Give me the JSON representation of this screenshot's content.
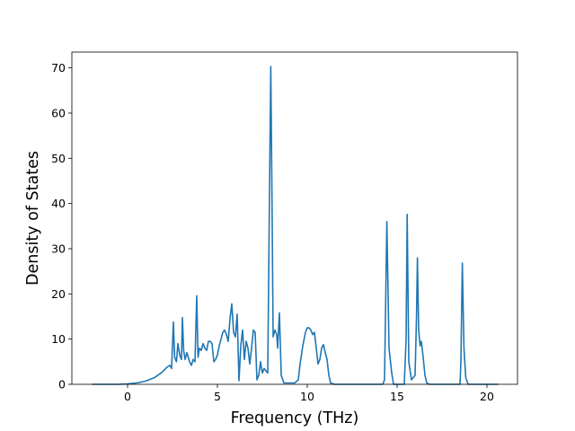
{
  "chart_data": {
    "type": "line",
    "title": "",
    "xlabel": "Frequency (THz)",
    "ylabel": "Density of States",
    "xlim": [
      -3.1,
      21.7
    ],
    "ylim": [
      0,
      73.5
    ],
    "xticks": [
      0,
      5,
      10,
      15,
      20
    ],
    "yticks": [
      0,
      10,
      20,
      30,
      40,
      50,
      60,
      70
    ],
    "grid": false,
    "legend": "none",
    "series": [
      {
        "color": "#1f77b4",
        "points": [
          [
            -1.95,
            0
          ],
          [
            -0.5,
            0
          ],
          [
            0,
            0.1
          ],
          [
            0.5,
            0.3
          ],
          [
            1.0,
            0.7
          ],
          [
            1.5,
            1.5
          ],
          [
            1.9,
            2.6
          ],
          [
            2.2,
            3.8
          ],
          [
            2.35,
            4.2
          ],
          [
            2.45,
            3.5
          ],
          [
            2.55,
            13.8
          ],
          [
            2.62,
            6.0
          ],
          [
            2.72,
            5.0
          ],
          [
            2.8,
            9.0
          ],
          [
            2.9,
            6.5
          ],
          [
            3.0,
            5.5
          ],
          [
            3.05,
            14.8
          ],
          [
            3.12,
            7.5
          ],
          [
            3.2,
            5.5
          ],
          [
            3.3,
            7.0
          ],
          [
            3.45,
            5.0
          ],
          [
            3.55,
            4.2
          ],
          [
            3.65,
            5.5
          ],
          [
            3.75,
            5.0
          ],
          [
            3.85,
            19.6
          ],
          [
            3.92,
            6.0
          ],
          [
            4.0,
            8.0
          ],
          [
            4.1,
            7.5
          ],
          [
            4.2,
            9.0
          ],
          [
            4.3,
            8.0
          ],
          [
            4.4,
            7.5
          ],
          [
            4.5,
            9.5
          ],
          [
            4.6,
            9.5
          ],
          [
            4.7,
            9.0
          ],
          [
            4.8,
            5.0
          ],
          [
            4.9,
            5.5
          ],
          [
            5.0,
            6.5
          ],
          [
            5.1,
            8.5
          ],
          [
            5.2,
            10.0
          ],
          [
            5.3,
            11.5
          ],
          [
            5.4,
            12.0
          ],
          [
            5.5,
            11.0
          ],
          [
            5.6,
            9.5
          ],
          [
            5.7,
            14.5
          ],
          [
            5.8,
            17.8
          ],
          [
            5.9,
            11.5
          ],
          [
            6.0,
            10.5
          ],
          [
            6.1,
            15.5
          ],
          [
            6.2,
            0.8
          ],
          [
            6.3,
            8.5
          ],
          [
            6.4,
            12.0
          ],
          [
            6.5,
            5.5
          ],
          [
            6.6,
            9.5
          ],
          [
            6.7,
            8.0
          ],
          [
            6.8,
            4.5
          ],
          [
            6.9,
            8.0
          ],
          [
            7.0,
            12.0
          ],
          [
            7.1,
            11.5
          ],
          [
            7.2,
            1.0
          ],
          [
            7.3,
            2.0
          ],
          [
            7.4,
            5.0
          ],
          [
            7.5,
            2.5
          ],
          [
            7.6,
            3.5
          ],
          [
            7.7,
            3.0
          ],
          [
            7.8,
            2.5
          ],
          [
            7.9,
            43.0
          ],
          [
            7.97,
            70.3
          ],
          [
            8.04,
            40.0
          ],
          [
            8.1,
            10.5
          ],
          [
            8.2,
            12.0
          ],
          [
            8.3,
            11.0
          ],
          [
            8.35,
            8.0
          ],
          [
            8.45,
            15.8
          ],
          [
            8.55,
            2.0
          ],
          [
            8.7,
            0.3
          ],
          [
            9.0,
            0.3
          ],
          [
            9.3,
            0.3
          ],
          [
            9.5,
            1.0
          ],
          [
            9.6,
            4.5
          ],
          [
            9.75,
            8.5
          ],
          [
            9.9,
            11.5
          ],
          [
            10.0,
            12.5
          ],
          [
            10.1,
            12.5
          ],
          [
            10.2,
            12.0
          ],
          [
            10.3,
            11.0
          ],
          [
            10.4,
            11.5
          ],
          [
            10.5,
            8.0
          ],
          [
            10.6,
            4.5
          ],
          [
            10.7,
            5.5
          ],
          [
            10.8,
            8.0
          ],
          [
            10.9,
            8.8
          ],
          [
            11.0,
            7.0
          ],
          [
            11.1,
            5.5
          ],
          [
            11.2,
            2.0
          ],
          [
            11.3,
            0.3
          ],
          [
            11.5,
            0
          ],
          [
            14.2,
            0
          ],
          [
            14.3,
            1.0
          ],
          [
            14.43,
            36.0
          ],
          [
            14.55,
            8.0
          ],
          [
            14.7,
            2.5
          ],
          [
            14.8,
            0
          ],
          [
            15.4,
            0
          ],
          [
            15.5,
            10.0
          ],
          [
            15.56,
            37.6
          ],
          [
            15.65,
            5.0
          ],
          [
            15.8,
            1.0
          ],
          [
            16.0,
            2.0
          ],
          [
            16.08,
            15.0
          ],
          [
            16.13,
            28.0
          ],
          [
            16.2,
            12.0
          ],
          [
            16.28,
            8.5
          ],
          [
            16.35,
            9.5
          ],
          [
            16.45,
            6.0
          ],
          [
            16.55,
            2.0
          ],
          [
            16.65,
            0.3
          ],
          [
            16.8,
            0
          ],
          [
            18.5,
            0
          ],
          [
            18.55,
            5.0
          ],
          [
            18.63,
            26.8
          ],
          [
            18.72,
            8.0
          ],
          [
            18.82,
            1.5
          ],
          [
            18.95,
            0
          ],
          [
            20.6,
            0
          ]
        ]
      }
    ]
  }
}
